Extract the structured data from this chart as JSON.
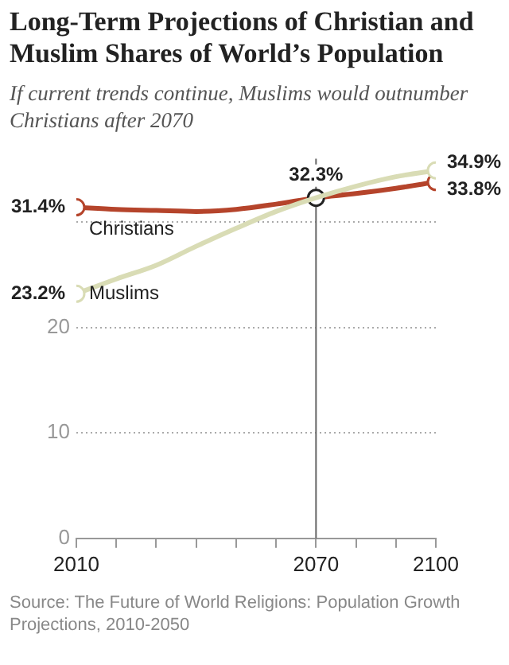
{
  "chart_data": {
    "type": "line",
    "title": "Long-Term Projections of Christian and Muslim Shares of World’s Population",
    "subtitle": "If current trends continue, Muslims would outnumber Christians after 2070",
    "x": [
      2010,
      2020,
      2030,
      2040,
      2050,
      2060,
      2070,
      2080,
      2090,
      2100
    ],
    "series": [
      {
        "name": "Christians",
        "color": "#b5442b",
        "values": [
          31.4,
          31.2,
          31.1,
          31.0,
          31.2,
          31.7,
          32.3,
          32.7,
          33.2,
          33.8
        ],
        "value_labels": [
          "31.4%",
          null,
          null,
          null,
          null,
          null,
          "32.3%",
          null,
          null,
          "33.8%"
        ]
      },
      {
        "name": "Muslims",
        "color": "#d9dcb5",
        "values": [
          23.2,
          24.6,
          25.9,
          27.7,
          29.4,
          31.0,
          32.3,
          33.4,
          34.3,
          34.9
        ],
        "value_labels": [
          "23.2%",
          null,
          null,
          null,
          null,
          null,
          null,
          null,
          null,
          "34.9%"
        ]
      }
    ],
    "xlim": [
      2010,
      2100
    ],
    "xticks": [
      2010,
      {
        "value": 2020,
        "label": null
      },
      {
        "value": 2030,
        "label": null
      },
      {
        "value": 2040,
        "label": null
      },
      {
        "value": 2050,
        "label": null
      },
      {
        "value": 2060,
        "label": null
      },
      2070,
      {
        "value": 2080,
        "label": null
      },
      {
        "value": 2090,
        "label": null
      },
      2100
    ],
    "ylim": [
      0,
      36
    ],
    "yticks": [
      0,
      10,
      20,
      {
        "value": 30,
        "label": null
      }
    ],
    "grid": "y",
    "legend": false,
    "line_style": "solid",
    "ref_lines": [
      {
        "axis": "x",
        "value": 2070,
        "label": null,
        "color": "#666666"
      }
    ],
    "annotations": [
      "Source: The Future of World Religions: Population Growth Projections, 2010-2050"
    ]
  }
}
